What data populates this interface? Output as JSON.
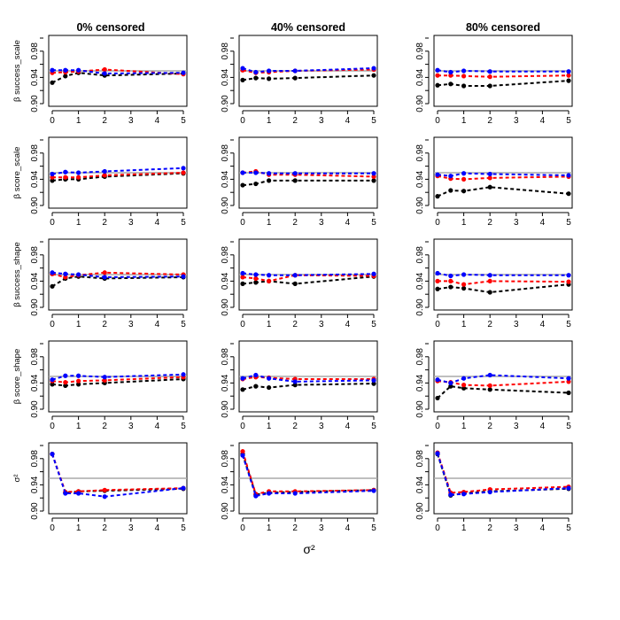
{
  "column_titles": [
    "0% censored",
    "40% censored",
    "80% censored"
  ],
  "row_labels": [
    "β success_scale",
    "β score_scale",
    "β success_shape",
    "β score_shape",
    "σ²"
  ],
  "x_axis_label": "σ²",
  "colors": {
    "black": "#000000",
    "red": "#ff0000",
    "blue": "#0000ff",
    "reference": "#aaaaaa"
  },
  "chart_data": {
    "type": "line",
    "layout": "grid of small multiples (5 rows × 3 columns)",
    "x": [
      0,
      0.5,
      1,
      2,
      5
    ],
    "xlim": [
      0,
      5
    ],
    "ylim": [
      0.9,
      1.0
    ],
    "x_ticks": [
      0,
      1,
      2,
      3,
      4,
      5
    ],
    "y_ticks": [
      0.9,
      0.94,
      0.98
    ],
    "y_tick_labels": [
      "0.90",
      "0.94",
      "0.98"
    ],
    "reference_line": 0.95,
    "line_style": "dashed with filled circle markers",
    "panels": [
      {
        "row": 0,
        "col": 0,
        "series": [
          {
            "color": "black",
            "values": [
              0.932,
              0.942,
              0.947,
              0.943,
              0.946
            ]
          },
          {
            "color": "red",
            "values": [
              0.947,
              0.948,
              0.949,
              0.952,
              0.945
            ]
          },
          {
            "color": "blue",
            "values": [
              0.951,
              0.951,
              0.951,
              0.946,
              0.947
            ]
          }
        ]
      },
      {
        "row": 0,
        "col": 1,
        "series": [
          {
            "color": "black",
            "values": [
              0.936,
              0.939,
              0.938,
              0.939,
              0.943
            ]
          },
          {
            "color": "red",
            "values": [
              0.951,
              0.947,
              0.948,
              0.95,
              0.952
            ]
          },
          {
            "color": "blue",
            "values": [
              0.954,
              0.948,
              0.95,
              0.95,
              0.954
            ]
          }
        ]
      },
      {
        "row": 0,
        "col": 2,
        "series": [
          {
            "color": "black",
            "values": [
              0.928,
              0.93,
              0.927,
              0.927,
              0.935
            ]
          },
          {
            "color": "red",
            "values": [
              0.943,
              0.943,
              0.942,
              0.941,
              0.943
            ]
          },
          {
            "color": "blue",
            "values": [
              0.951,
              0.948,
              0.95,
              0.949,
              0.949
            ]
          }
        ]
      },
      {
        "row": 1,
        "col": 0,
        "series": [
          {
            "color": "black",
            "values": [
              0.938,
              0.94,
              0.94,
              0.944,
              0.949
            ]
          },
          {
            "color": "red",
            "values": [
              0.943,
              0.943,
              0.943,
              0.946,
              0.95
            ]
          },
          {
            "color": "blue",
            "values": [
              0.948,
              0.951,
              0.95,
              0.952,
              0.957
            ]
          }
        ]
      },
      {
        "row": 1,
        "col": 1,
        "series": [
          {
            "color": "black",
            "values": [
              0.931,
              0.933,
              0.938,
              0.938,
              0.938
            ]
          },
          {
            "color": "red",
            "values": [
              0.95,
              0.952,
              0.947,
              0.947,
              0.944
            ]
          },
          {
            "color": "blue",
            "values": [
              0.95,
              0.95,
              0.949,
              0.949,
              0.949
            ]
          }
        ]
      },
      {
        "row": 1,
        "col": 2,
        "series": [
          {
            "color": "black",
            "values": [
              0.914,
              0.923,
              0.922,
              0.928,
              0.918
            ]
          },
          {
            "color": "red",
            "values": [
              0.945,
              0.941,
              0.94,
              0.942,
              0.944
            ]
          },
          {
            "color": "blue",
            "values": [
              0.947,
              0.945,
              0.949,
              0.948,
              0.946
            ]
          }
        ]
      },
      {
        "row": 2,
        "col": 0,
        "series": [
          {
            "color": "black",
            "values": [
              0.932,
              0.944,
              0.947,
              0.944,
              0.946
            ]
          },
          {
            "color": "red",
            "values": [
              0.951,
              0.946,
              0.949,
              0.953,
              0.95
            ]
          },
          {
            "color": "blue",
            "values": [
              0.953,
              0.951,
              0.95,
              0.946,
              0.947
            ]
          }
        ]
      },
      {
        "row": 2,
        "col": 1,
        "series": [
          {
            "color": "black",
            "values": [
              0.936,
              0.938,
              0.94,
              0.936,
              0.947
            ]
          },
          {
            "color": "red",
            "values": [
              0.946,
              0.944,
              0.94,
              0.949,
              0.948
            ]
          },
          {
            "color": "blue",
            "values": [
              0.952,
              0.95,
              0.949,
              0.949,
              0.951
            ]
          }
        ]
      },
      {
        "row": 2,
        "col": 2,
        "series": [
          {
            "color": "black",
            "values": [
              0.928,
              0.931,
              0.929,
              0.923,
              0.935
            ]
          },
          {
            "color": "red",
            "values": [
              0.94,
              0.94,
              0.935,
              0.94,
              0.939
            ]
          },
          {
            "color": "blue",
            "values": [
              0.952,
              0.948,
              0.95,
              0.949,
              0.949
            ]
          }
        ]
      },
      {
        "row": 3,
        "col": 0,
        "series": [
          {
            "color": "black",
            "values": [
              0.938,
              0.936,
              0.938,
              0.94,
              0.946
            ]
          },
          {
            "color": "red",
            "values": [
              0.943,
              0.941,
              0.943,
              0.944,
              0.949
            ]
          },
          {
            "color": "blue",
            "values": [
              0.945,
              0.951,
              0.951,
              0.949,
              0.953
            ]
          }
        ]
      },
      {
        "row": 3,
        "col": 1,
        "series": [
          {
            "color": "black",
            "values": [
              0.93,
              0.935,
              0.933,
              0.937,
              0.939
            ]
          },
          {
            "color": "red",
            "values": [
              0.946,
              0.949,
              0.948,
              0.946,
              0.946
            ]
          },
          {
            "color": "blue",
            "values": [
              0.947,
              0.952,
              0.947,
              0.942,
              0.944
            ]
          }
        ]
      },
      {
        "row": 3,
        "col": 2,
        "series": [
          {
            "color": "black",
            "values": [
              0.917,
              0.935,
              0.932,
              0.93,
              0.925
            ]
          },
          {
            "color": "red",
            "values": [
              0.943,
              0.941,
              0.937,
              0.936,
              0.942
            ]
          },
          {
            "color": "blue",
            "values": [
              0.945,
              0.94,
              0.947,
              0.952,
              0.947
            ]
          }
        ]
      },
      {
        "row": 4,
        "col": 0,
        "series": [
          {
            "color": "black",
            "values": [
              0.987,
              0.928,
              0.93,
              0.931,
              0.934
            ]
          },
          {
            "color": "red",
            "values": [
              0.987,
              0.929,
              0.93,
              0.932,
              0.935
            ]
          },
          {
            "color": "blue",
            "values": [
              0.987,
              0.927,
              0.927,
              0.922,
              0.935
            ]
          }
        ]
      },
      {
        "row": 4,
        "col": 1,
        "series": [
          {
            "color": "black",
            "values": [
              0.987,
              0.925,
              0.928,
              0.929,
              0.932
            ]
          },
          {
            "color": "red",
            "values": [
              0.991,
              0.926,
              0.93,
              0.93,
              0.932
            ]
          },
          {
            "color": "blue",
            "values": [
              0.985,
              0.923,
              0.927,
              0.927,
              0.931
            ]
          }
        ]
      },
      {
        "row": 4,
        "col": 2,
        "series": [
          {
            "color": "black",
            "values": [
              0.987,
              0.924,
              0.927,
              0.93,
              0.934
            ]
          },
          {
            "color": "red",
            "values": [
              0.989,
              0.928,
              0.929,
              0.933,
              0.937
            ]
          },
          {
            "color": "blue",
            "values": [
              0.988,
              0.925,
              0.926,
              0.929,
              0.935
            ]
          }
        ]
      }
    ]
  }
}
